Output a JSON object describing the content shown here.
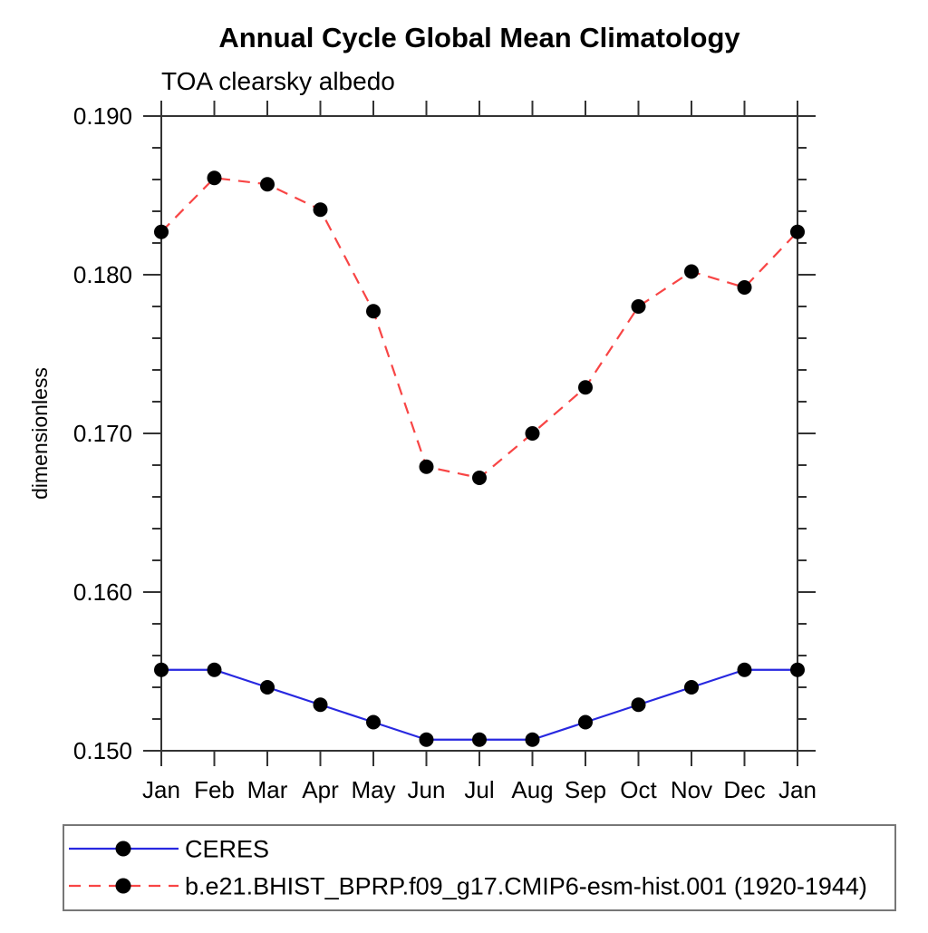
{
  "chart_data": {
    "type": "line",
    "title": "Annual Cycle Global Mean Climatology",
    "subtitle": "TOA clearsky albedo",
    "ylabel": "dimensionless",
    "xlabel": "",
    "categories": [
      "Jan",
      "Feb",
      "Mar",
      "Apr",
      "May",
      "Jun",
      "Jul",
      "Aug",
      "Sep",
      "Oct",
      "Nov",
      "Dec",
      "Jan"
    ],
    "ylim": [
      0.15,
      0.19
    ],
    "y_major_step": 0.01,
    "y_minor_step": 0.002,
    "y_tick_decimals": 3,
    "y_major_tick_labels": [
      "0.150",
      "0.160",
      "0.170",
      "0.180",
      "0.190"
    ],
    "grid": false,
    "legend_position": "bottom",
    "axis_color": "#333333",
    "marker_color": "#000000",
    "series": [
      {
        "name": "CERES",
        "color": "#2828e0",
        "line_style": "solid",
        "marker": "circle",
        "values": [
          0.1551,
          0.1551,
          0.154,
          0.1529,
          0.1518,
          0.1507,
          0.1507,
          0.1507,
          0.1518,
          0.1529,
          0.154,
          0.1551,
          0.1551
        ]
      },
      {
        "name": "b.e21.BHIST_BPRP.f09_g17.CMIP6-esm-hist.001 (1920-1944)",
        "color": "#f84545",
        "line_style": "dashed",
        "marker": "circle",
        "values": [
          0.1827,
          0.1861,
          0.1857,
          0.1841,
          0.1777,
          0.1679,
          0.1672,
          0.17,
          0.1729,
          0.178,
          0.1802,
          0.1792,
          0.1827
        ]
      }
    ]
  }
}
